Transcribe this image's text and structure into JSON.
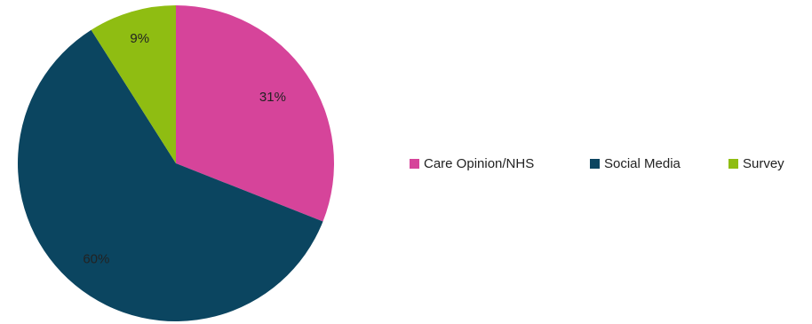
{
  "chart_data": {
    "type": "pie",
    "title": "",
    "categories": [
      "Care Opinion/NHS",
      "Social Media",
      "Survey"
    ],
    "values": [
      31,
      60,
      9
    ],
    "data_labels": [
      "31%",
      "60%",
      "9%"
    ],
    "colors": [
      "#d6449a",
      "#0b4560",
      "#8fbd12"
    ],
    "legend": {
      "placement": "right",
      "entries": [
        "Care Opinion/NHS",
        "Social Media",
        "Survey"
      ]
    }
  }
}
